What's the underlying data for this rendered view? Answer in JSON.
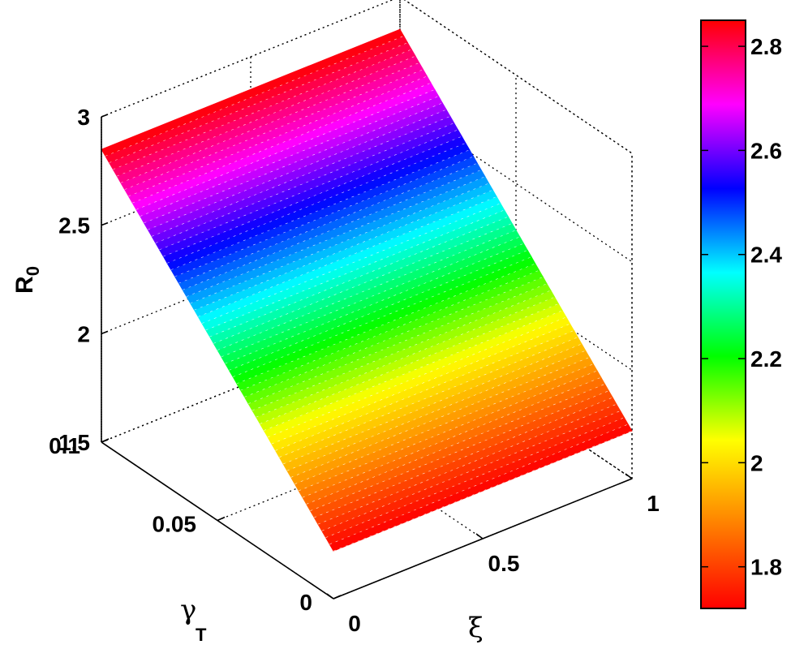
{
  "chart_data": {
    "type": "surface3d",
    "x": {
      "symbol": "ξ",
      "range": [
        0,
        1
      ],
      "ticks": [
        "0",
        "0.5",
        "1"
      ]
    },
    "y": {
      "symbol": "γ",
      "subscript": "T",
      "range": [
        0,
        0.1
      ],
      "ticks": [
        "0",
        "0.05",
        "0.1"
      ]
    },
    "z": {
      "symbol": "R",
      "subscript": "0",
      "range": [
        1.5,
        3
      ],
      "ticks": [
        "1.5",
        "2",
        "2.5",
        "3"
      ]
    },
    "surface": {
      "corners": [
        {
          "xi": 0,
          "gamma_T": 0,
          "R0": 1.72
        },
        {
          "xi": 1,
          "gamma_T": 0,
          "R0": 1.72
        },
        {
          "xi": 1,
          "gamma_T": 0.1,
          "R0": 2.85
        },
        {
          "xi": 0,
          "gamma_T": 0.1,
          "R0": 2.85
        }
      ],
      "note_text": ""
    },
    "colorbar": {
      "range": [
        1.72,
        2.85
      ],
      "ticks": [
        "1.8",
        "2",
        "2.2",
        "2.4",
        "2.6",
        "2.8"
      ],
      "colormap": [
        "#ff0000",
        "#ff8000",
        "#ffff00",
        "#00ff00",
        "#00ffff",
        "#0000ff",
        "#ff00ff",
        "#ff0000"
      ]
    },
    "grid": true,
    "colormap_name": "hsv"
  }
}
